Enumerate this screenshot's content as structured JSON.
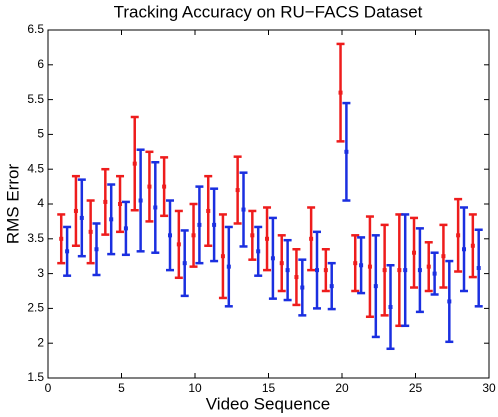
{
  "chart_data": {
    "type": "errorbar",
    "title": "Tracking Accuracy on RU−FACS Dataset",
    "x_label": "Video Sequence",
    "y_label": "RMS Error",
    "xlim": [
      0,
      30
    ],
    "xticks": [
      0,
      5,
      10,
      15,
      20,
      25,
      30
    ],
    "ylim": [
      1.5,
      6.5
    ],
    "yticks": [
      1.5,
      2,
      2.5,
      3,
      3.5,
      4,
      4.5,
      5,
      5.5,
      6,
      6.5
    ],
    "series": [
      {
        "color": "#ee1c1c",
        "x": [
          0.9,
          1.9,
          2.9,
          3.9,
          4.9,
          5.9,
          6.9,
          7.9,
          8.9,
          9.9,
          10.9,
          11.9,
          12.9,
          13.9,
          14.9,
          15.9,
          16.9,
          17.9,
          18.9,
          19.9,
          20.9,
          21.9,
          22.9,
          23.9,
          24.9,
          25.9,
          26.9,
          27.9,
          28.9
        ],
        "values": [
          3.5,
          3.9,
          3.6,
          4.03,
          4.0,
          4.58,
          4.25,
          4.25,
          3.42,
          3.55,
          3.9,
          3.25,
          4.2,
          3.55,
          3.5,
          3.15,
          2.95,
          3.5,
          3.05,
          5.6,
          3.15,
          3.1,
          3.05,
          3.05,
          3.3,
          3.1,
          3.25,
          3.55,
          3.4
        ],
        "errors": [
          0.35,
          0.5,
          0.45,
          0.47,
          0.4,
          0.67,
          0.5,
          0.42,
          0.48,
          0.45,
          0.5,
          0.6,
          0.48,
          0.35,
          0.45,
          0.4,
          0.4,
          0.45,
          0.3,
          0.7,
          0.4,
          0.72,
          0.65,
          0.8,
          0.5,
          0.35,
          0.45,
          0.52,
          0.45
        ]
      },
      {
        "color": "#1a2fe0",
        "x": [
          1.3,
          2.3,
          3.3,
          4.3,
          5.3,
          6.3,
          7.3,
          8.3,
          9.3,
          10.3,
          11.3,
          12.3,
          13.3,
          14.3,
          15.3,
          16.3,
          17.3,
          18.3,
          19.3,
          20.3,
          21.3,
          22.3,
          23.3,
          24.3,
          25.3,
          26.3,
          27.3,
          28.3,
          29.3
        ],
        "values": [
          3.32,
          3.8,
          3.35,
          3.78,
          3.65,
          4.05,
          3.95,
          3.55,
          3.15,
          3.7,
          3.7,
          3.1,
          3.92,
          3.32,
          3.22,
          3.05,
          2.8,
          3.05,
          2.82,
          4.75,
          3.12,
          2.82,
          2.52,
          3.05,
          3.05,
          3.0,
          2.6,
          3.35,
          3.08
        ],
        "errors": [
          0.35,
          0.55,
          0.37,
          0.5,
          0.38,
          0.73,
          0.65,
          0.5,
          0.47,
          0.55,
          0.52,
          0.57,
          0.53,
          0.35,
          0.58,
          0.43,
          0.4,
          0.55,
          0.33,
          0.7,
          0.4,
          0.73,
          0.6,
          0.8,
          0.6,
          0.3,
          0.58,
          0.6,
          0.55
        ]
      }
    ]
  }
}
